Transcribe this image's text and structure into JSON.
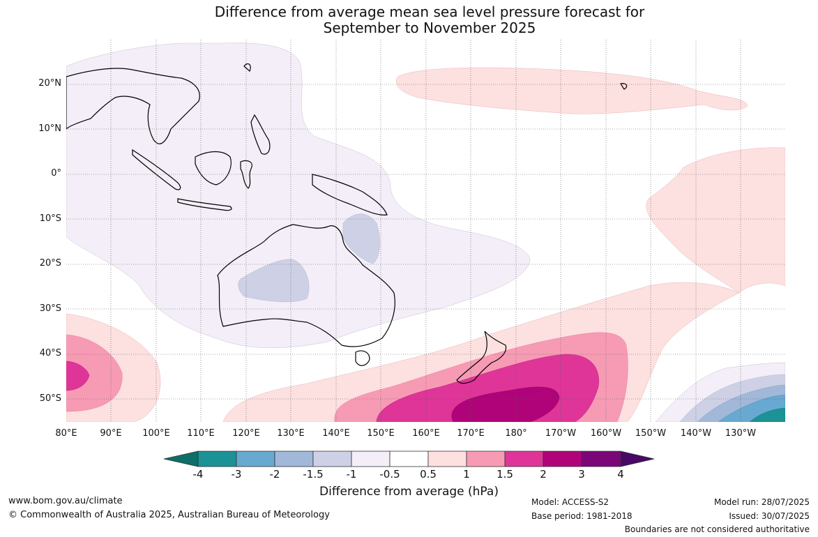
{
  "title_line1": "Difference from average mean sea level pressure forecast for",
  "title_line2": "September to November 2025",
  "lat_labels": [
    "20°N",
    "10°N",
    "0°",
    "10°S",
    "20°S",
    "30°S",
    "40°S",
    "50°S"
  ],
  "lon_labels": [
    "80°E",
    "90°E",
    "100°E",
    "110°E",
    "120°E",
    "130°E",
    "140°E",
    "150°E",
    "160°E",
    "170°E",
    "180°",
    "170°W",
    "160°W",
    "150°W",
    "140°W",
    "130°W"
  ],
  "colorbar": {
    "tick_labels": [
      "-4",
      "-3",
      "-2",
      "-1.5",
      "-1",
      "-0.5",
      "0.5",
      "1",
      "1.5",
      "2",
      "3",
      "4"
    ],
    "colors": [
      "#0e6e68",
      "#1b9296",
      "#67a9d1",
      "#a2b8d8",
      "#ced1e6",
      "#f3eef7",
      "#ffffff",
      "#fde0e0",
      "#f79bb5",
      "#df3598",
      "#b00379",
      "#7a0678",
      "#4a0866"
    ],
    "title": "Difference from average (hPa)"
  },
  "footer": {
    "website": "www.bom.gov.au/climate",
    "copyright": "© Commonwealth of Australia 2025, Australian Bureau of Meteorology",
    "model": "Model: ACCESS-S2",
    "base_period": "Base period: 1981-2018",
    "model_run": "Model run: 28/07/2025",
    "issued": "Issued: 30/07/2025",
    "disclaimer": "Boundaries are not considered authoritative"
  }
}
